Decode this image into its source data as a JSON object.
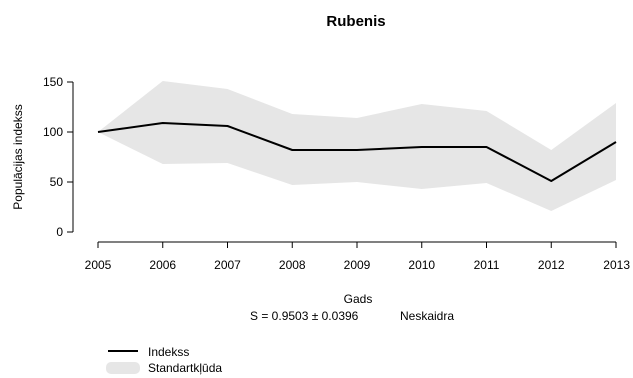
{
  "chart_data": {
    "type": "line",
    "title": "Rubenis",
    "xlabel": "Gads",
    "ylabel": "Populācijas indekss",
    "x": [
      2005,
      2006,
      2007,
      2008,
      2009,
      2010,
      2011,
      2012,
      2013
    ],
    "xlim": [
      2005,
      2013
    ],
    "ylim": [
      0,
      150
    ],
    "yticks": [
      0,
      50,
      100,
      150
    ],
    "series": [
      {
        "name": "Indekss",
        "type": "line",
        "color": "#000000",
        "values": [
          100,
          109,
          106,
          82,
          82,
          85,
          85,
          51,
          90
        ]
      },
      {
        "name": "Standartkļūda",
        "type": "band",
        "color": "#e6e6e6",
        "lower": [
          100,
          68,
          69,
          47,
          50,
          43,
          49,
          21,
          52
        ],
        "upper": [
          100,
          151,
          143,
          118,
          114,
          128,
          121,
          82,
          129
        ]
      }
    ],
    "annotation_stat": "S = 0.9503 ± 0.0396",
    "annotation_trend": "Neskaidra",
    "legend": {
      "placement": "bottom-left",
      "line_label": "Indekss",
      "band_label": "Standartkļūda"
    },
    "grid": false
  }
}
